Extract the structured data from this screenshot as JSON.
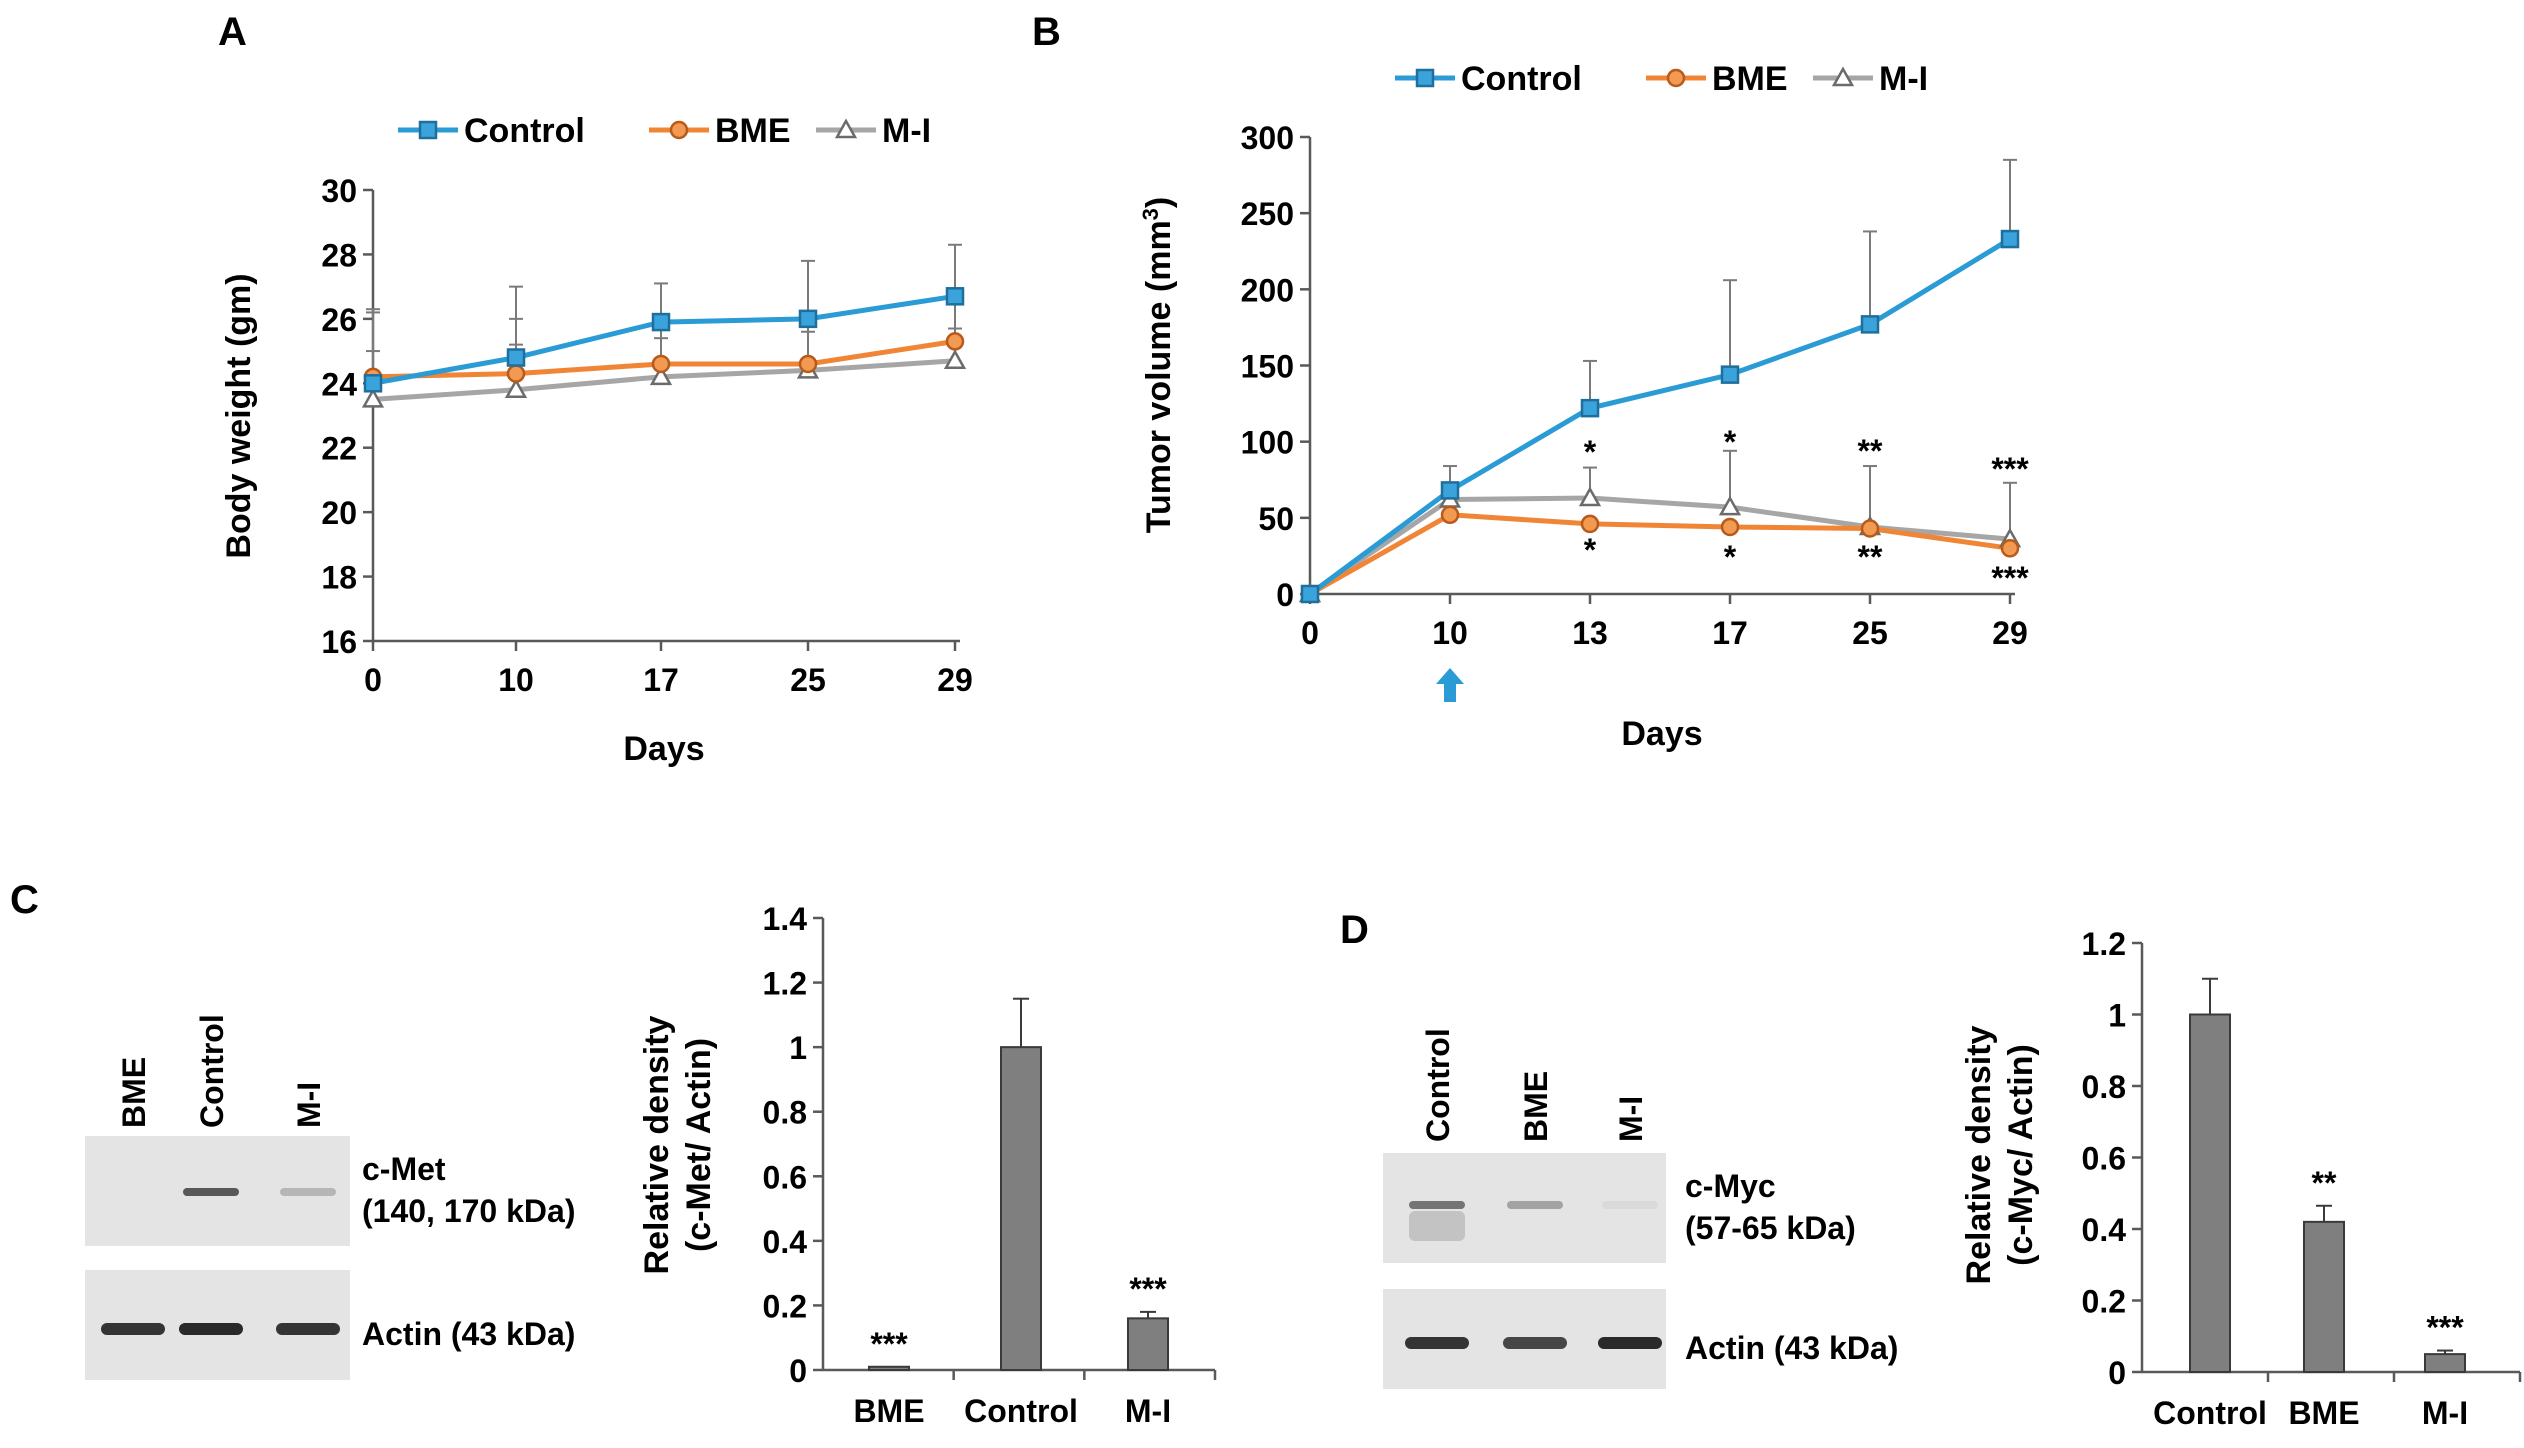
{
  "colors": {
    "control": "#2b9bd6",
    "control_fill": "#3aa3dc",
    "bme": "#f08536",
    "bme_fill": "#f29a52",
    "mi": "#a6a6a6",
    "bar_fill": "#7f7f7f",
    "axis": "#595959",
    "text": "#000000",
    "blot_bg": "#e4e4e4",
    "band": "#2a2a2a",
    "arrow": "#2b9bd6"
  },
  "chart_data": [
    {
      "panel": "A",
      "type": "line",
      "xlabel": "Days",
      "ylabel": "Body weight (gm)",
      "x": [
        "0",
        "10",
        "17",
        "25",
        "29"
      ],
      "ylim": [
        16,
        30
      ],
      "yticks": [
        "16",
        "18",
        "20",
        "22",
        "24",
        "26",
        "28",
        "30"
      ],
      "legend_position": "top",
      "series": [
        {
          "name": "Control",
          "marker": "square",
          "values": [
            24.0,
            24.8,
            25.9,
            26.0,
            26.7
          ],
          "errors": [
            2.3,
            2.2,
            1.2,
            1.8,
            1.6
          ]
        },
        {
          "name": "BME",
          "marker": "circle",
          "values": [
            24.2,
            24.3,
            24.6,
            24.6,
            25.3
          ],
          "errors": [
            2.0,
            1.7,
            1.2,
            1.4,
            1.3
          ]
        },
        {
          "name": "M-I",
          "marker": "triangle",
          "values": [
            23.5,
            23.8,
            24.2,
            24.4,
            24.7
          ],
          "errors": [
            1.5,
            1.4,
            1.2,
            1.2,
            1.0
          ]
        }
      ]
    },
    {
      "panel": "B",
      "type": "line",
      "xlabel": "Days",
      "ylabel_main": "Tumor volume (mm",
      "ylabel_sup": "3",
      "ylabel_end": ")",
      "x": [
        "0",
        "10",
        "13",
        "17",
        "25",
        "29"
      ],
      "ylim": [
        0,
        300
      ],
      "yticks": [
        "0",
        "50",
        "100",
        "150",
        "200",
        "250",
        "300"
      ],
      "legend_position": "top",
      "treatment_marker_at": "10",
      "series": [
        {
          "name": "Control",
          "marker": "square",
          "values": [
            0,
            68,
            122,
            144,
            177,
            233
          ],
          "errors": [
            0,
            16,
            31,
            62,
            61,
            52
          ]
        },
        {
          "name": "BME",
          "marker": "circle",
          "values": [
            0,
            52,
            46,
            44,
            43,
            30
          ],
          "errors": [
            0,
            0,
            0,
            0,
            0,
            0
          ]
        },
        {
          "name": "M-I",
          "marker": "triangle",
          "values": [
            0,
            62,
            63,
            57,
            44,
            36
          ],
          "errors": [
            0,
            0,
            20,
            37,
            40,
            37
          ]
        }
      ],
      "annotations": [
        {
          "x": "13",
          "above": "*",
          "below": "*"
        },
        {
          "x": "17",
          "above": "*",
          "below": "*"
        },
        {
          "x": "25",
          "above": "**",
          "below": "**"
        },
        {
          "x": "29",
          "above": "***",
          "below": "***"
        }
      ]
    },
    {
      "panel": "C",
      "type": "bar",
      "ylabel_line1": "Relative density",
      "ylabel_line2": "(c-Met/ Actin)",
      "categories": [
        "BME",
        "Control",
        "M-I"
      ],
      "values": [
        0.01,
        1.0,
        0.16
      ],
      "errors": [
        0.0,
        0.15,
        0.02
      ],
      "labels": [
        "***",
        "",
        "***"
      ],
      "ylim": [
        0,
        1.4
      ],
      "yticks": [
        "0",
        "0.2",
        "0.4",
        "0.6",
        "0.8",
        "1",
        "1.2",
        "1.4"
      ]
    },
    {
      "panel": "D",
      "type": "bar",
      "ylabel_line1": "Relative density",
      "ylabel_line2": "(c-Myc/ Actin)",
      "categories": [
        "Control",
        "BME",
        "M-I"
      ],
      "values": [
        1.0,
        0.42,
        0.05
      ],
      "errors": [
        0.1,
        0.045,
        0.01
      ],
      "labels": [
        "",
        "**",
        "***"
      ],
      "ylim": [
        0,
        1.2
      ],
      "yticks": [
        "0",
        "0.2",
        "0.4",
        "0.6",
        "0.8",
        "1",
        "1.2"
      ]
    }
  ],
  "panel_letters": {
    "a": "A",
    "b": "B",
    "c": "C",
    "d": "D"
  },
  "blots": {
    "c": {
      "lanes": [
        "BME",
        "Control",
        "M-I"
      ],
      "target_label_line1": "c-Met",
      "target_label_line2": "(140, 170 kDa)",
      "target_band_intensity": [
        0.0,
        0.75,
        0.25
      ],
      "actin_label": "Actin (43 kDa)",
      "actin_band_intensity": [
        0.95,
        1.0,
        0.95
      ]
    },
    "d": {
      "lanes": [
        "Control",
        "BME",
        "M-I"
      ],
      "target_label_line1": "c-Myc",
      "target_label_line2": "(57-65 kDa)",
      "target_band_intensity": [
        0.6,
        0.35,
        0.05
      ],
      "actin_label": "Actin (43 kDa)",
      "actin_band_intensity": [
        0.95,
        0.85,
        1.0
      ]
    }
  }
}
